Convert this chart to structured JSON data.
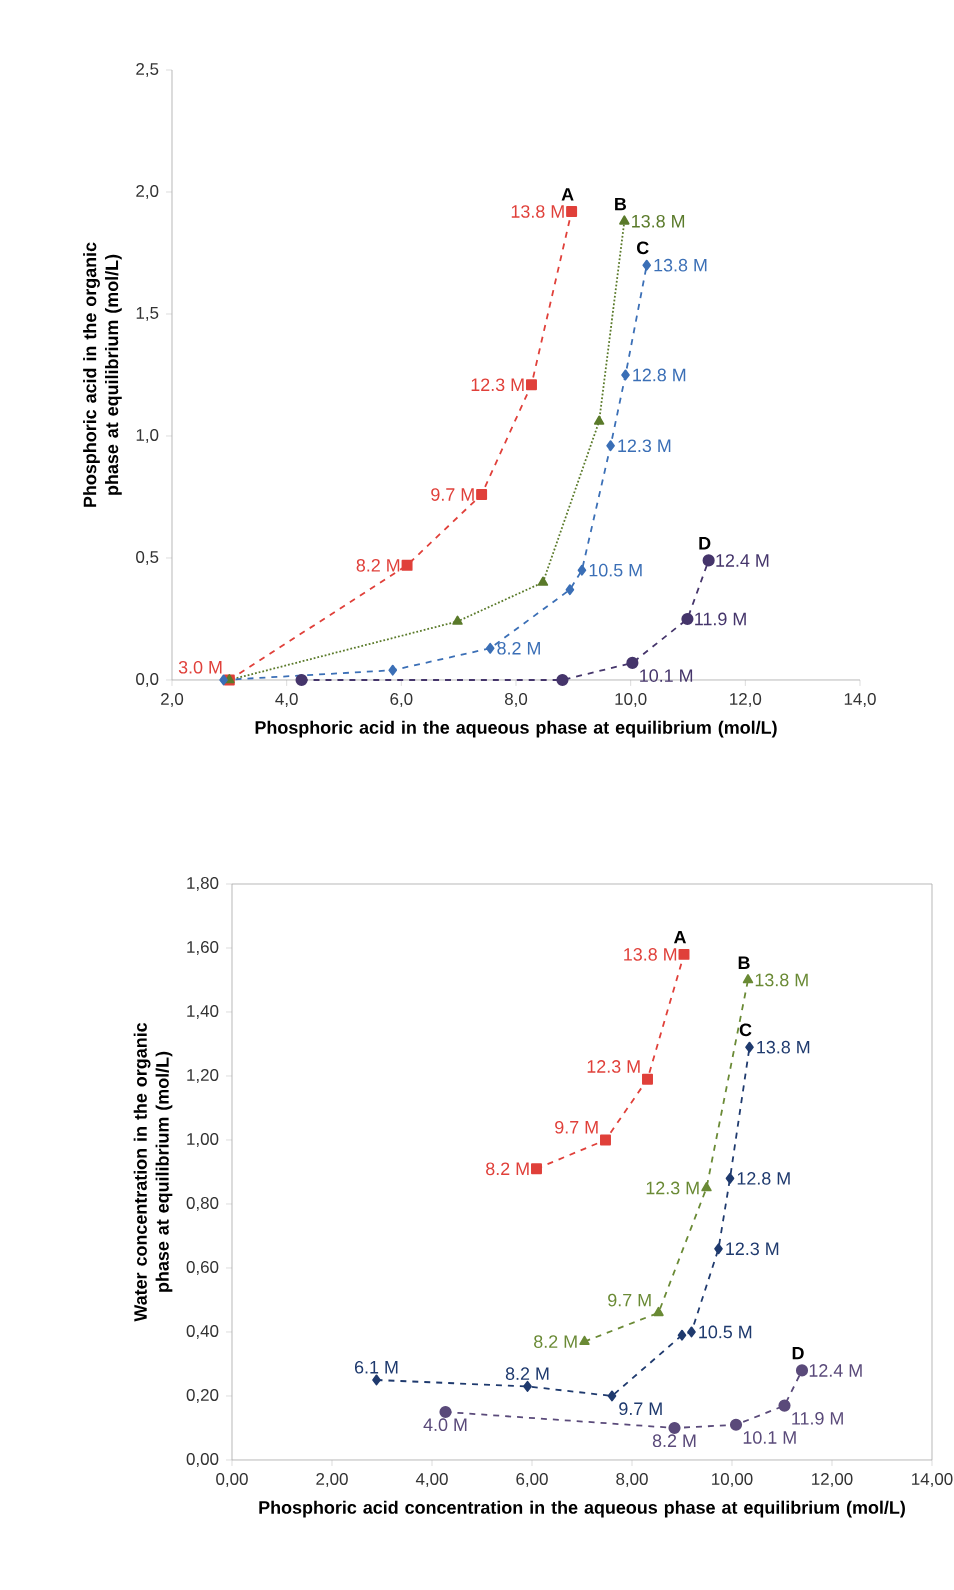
{
  "chart_data": [
    {
      "type": "line",
      "xlabel": "Phosphoric acid in the aqueous phase at equilibrium (mol/L)",
      "ylabel": "Phosphoric acid  in the organic phase at equilibrium (mol/L)",
      "xlim": [
        2,
        14
      ],
      "ylim": [
        0,
        2.5
      ],
      "xticks": [
        {
          "value": 2,
          "label": "2,0"
        },
        {
          "value": 4,
          "label": "4,0"
        },
        {
          "value": 6,
          "label": "6,0"
        },
        {
          "value": 8,
          "label": "8,0"
        },
        {
          "value": 10,
          "label": "10,0"
        },
        {
          "value": 12,
          "label": "12,0"
        },
        {
          "value": 14,
          "label": "14,0"
        }
      ],
      "yticks": [
        {
          "value": 0,
          "label": "0,0"
        },
        {
          "value": 0.5,
          "label": "0,5"
        },
        {
          "value": 1,
          "label": "1,0"
        },
        {
          "value": 1.5,
          "label": "1,5"
        },
        {
          "value": 2,
          "label": "2,0"
        },
        {
          "value": 2.5,
          "label": "2,5"
        }
      ],
      "series": [
        {
          "name": "A",
          "color": "#e0403a",
          "marker": "square",
          "line_style": "dashed",
          "x": [
            3.0,
            6.1,
            7.4,
            8.27,
            8.97
          ],
          "values": [
            0,
            0.47,
            0.76,
            1.21,
            1.92
          ]
        },
        {
          "name": "B",
          "color": "#5a7a2a",
          "marker": "triangle",
          "line_style": "dotted",
          "x": [
            3.0,
            6.98,
            8.47,
            9.45,
            9.89
          ],
          "values": [
            0,
            0.24,
            0.4,
            1.06,
            1.88
          ]
        },
        {
          "name": "C",
          "color": "#3b6fb6",
          "marker": "diamond",
          "line_style": "dashed",
          "x": [
            2.9,
            5.85,
            7.55,
            8.94,
            9.15,
            9.65,
            9.91,
            10.28
          ],
          "values": [
            0,
            0.04,
            0.13,
            0.37,
            0.45,
            0.96,
            1.25,
            1.7
          ]
        },
        {
          "name": "D",
          "color": "#45356b",
          "marker": "circle",
          "line_style": "dashed",
          "x": [
            4.26,
            8.81,
            10.03,
            10.99,
            11.36
          ],
          "values": [
            0,
            0,
            0.07,
            0.25,
            0.49
          ]
        }
      ],
      "annotations": [
        {
          "text": "3.0 M",
          "x": 3.0,
          "y": 0
        },
        {
          "text": "8.2 M",
          "x": 6.1,
          "y": 0.47
        },
        {
          "text": "9.7 M",
          "x": 7.4,
          "y": 0.76
        },
        {
          "text": "12.3 M",
          "x": 8.27,
          "y": 1.21
        },
        {
          "text": "13.8 M",
          "x": 8.97,
          "y": 1.92
        },
        {
          "text": "13.8 M",
          "x": 9.89,
          "y": 1.88
        },
        {
          "text": "8.2 M",
          "x": 7.55,
          "y": 0.13
        },
        {
          "text": "10.5 M",
          "x": 9.15,
          "y": 0.45
        },
        {
          "text": "12.3 M",
          "x": 9.65,
          "y": 0.96
        },
        {
          "text": "12.8 M",
          "x": 9.91,
          "y": 1.25
        },
        {
          "text": "13.8 M",
          "x": 10.28,
          "y": 1.7
        },
        {
          "text": "10.1 M",
          "x": 10.03,
          "y": 0.07
        },
        {
          "text": "11.9 M",
          "x": 10.99,
          "y": 0.25
        },
        {
          "text": "12.4 M",
          "x": 11.36,
          "y": 0.49
        }
      ]
    },
    {
      "type": "line",
      "xlabel": "Phosphoric acid concentration in the aqueous phase at equilibrium (mol/L)",
      "ylabel": "Water concentration in the organic phase at equilibrium (mol/L)",
      "xlim": [
        0,
        14
      ],
      "ylim": [
        0,
        1.8
      ],
      "xticks": [
        {
          "value": 0,
          "label": "0,00"
        },
        {
          "value": 2,
          "label": "2,00"
        },
        {
          "value": 4,
          "label": "4,00"
        },
        {
          "value": 6,
          "label": "6,00"
        },
        {
          "value": 8,
          "label": "8,00"
        },
        {
          "value": 10,
          "label": "10,00"
        },
        {
          "value": 12,
          "label": "12,00"
        },
        {
          "value": 14,
          "label": "14,00"
        }
      ],
      "yticks": [
        {
          "value": 0,
          "label": "0,00"
        },
        {
          "value": 0.2,
          "label": "0,20"
        },
        {
          "value": 0.4,
          "label": "0,40"
        },
        {
          "value": 0.6,
          "label": "0,60"
        },
        {
          "value": 0.8,
          "label": "0,80"
        },
        {
          "value": 1.0,
          "label": "1,00"
        },
        {
          "value": 1.2,
          "label": "1,20"
        },
        {
          "value": 1.4,
          "label": "1,40"
        },
        {
          "value": 1.6,
          "label": "1,60"
        },
        {
          "value": 1.8,
          "label": "1,80"
        }
      ],
      "series": [
        {
          "name": "A",
          "color": "#e0403a",
          "marker": "square",
          "line_style": "dashed",
          "x": [
            6.09,
            7.47,
            8.31,
            9.04
          ],
          "values": [
            0.91,
            1.0,
            1.19,
            1.58
          ]
        },
        {
          "name": "B",
          "color": "#6a8a35",
          "marker": "triangle",
          "line_style": "dashed",
          "x": [
            7.05,
            8.53,
            9.49,
            10.32
          ],
          "values": [
            0.37,
            0.46,
            0.85,
            1.5
          ]
        },
        {
          "name": "C",
          "color": "#1f3a6e",
          "marker": "diamond",
          "line_style": "dashed",
          "x": [
            2.89,
            5.91,
            7.6,
            9.0,
            9.19,
            9.73,
            9.96,
            10.35
          ],
          "values": [
            0.25,
            0.23,
            0.2,
            0.39,
            0.4,
            0.66,
            0.88,
            1.29
          ]
        },
        {
          "name": "D",
          "color": "#5a4a7a",
          "marker": "circle",
          "line_style": "dashed",
          "x": [
            4.27,
            8.85,
            10.08,
            11.05,
            11.4
          ],
          "values": [
            0.15,
            0.1,
            0.11,
            0.17,
            0.28
          ]
        }
      ],
      "annotations": [
        {
          "text": "8.2 M",
          "x": 6.09,
          "y": 0.91
        },
        {
          "text": "9.7 M",
          "x": 7.47,
          "y": 1.0
        },
        {
          "text": "12.3 M",
          "x": 8.31,
          "y": 1.19
        },
        {
          "text": "13.8 M",
          "x": 9.04,
          "y": 1.58
        },
        {
          "text": "8.2 M",
          "x": 7.05,
          "y": 0.37
        },
        {
          "text": "9.7 M",
          "x": 8.53,
          "y": 0.46
        },
        {
          "text": "12.3 M",
          "x": 9.49,
          "y": 0.85
        },
        {
          "text": "13.8 M",
          "x": 10.32,
          "y": 1.5
        },
        {
          "text": "6.1 M",
          "x": 2.89,
          "y": 0.25
        },
        {
          "text": "8.2 M",
          "x": 5.91,
          "y": 0.23
        },
        {
          "text": "9.7 M",
          "x": 7.6,
          "y": 0.2
        },
        {
          "text": "10.5 M",
          "x": 9.19,
          "y": 0.4
        },
        {
          "text": "12.3 M",
          "x": 9.73,
          "y": 0.66
        },
        {
          "text": "12.8 M",
          "x": 9.96,
          "y": 0.88
        },
        {
          "text": "13.8 M",
          "x": 10.35,
          "y": 1.29
        },
        {
          "text": "4.0 M",
          "x": 4.27,
          "y": 0.15
        },
        {
          "text": "8.2 M",
          "x": 8.85,
          "y": 0.1
        },
        {
          "text": "10.1 M",
          "x": 10.08,
          "y": 0.11
        },
        {
          "text": "11.9 M",
          "x": 11.05,
          "y": 0.17
        },
        {
          "text": "12.4 M",
          "x": 11.4,
          "y": 0.28
        }
      ]
    }
  ]
}
